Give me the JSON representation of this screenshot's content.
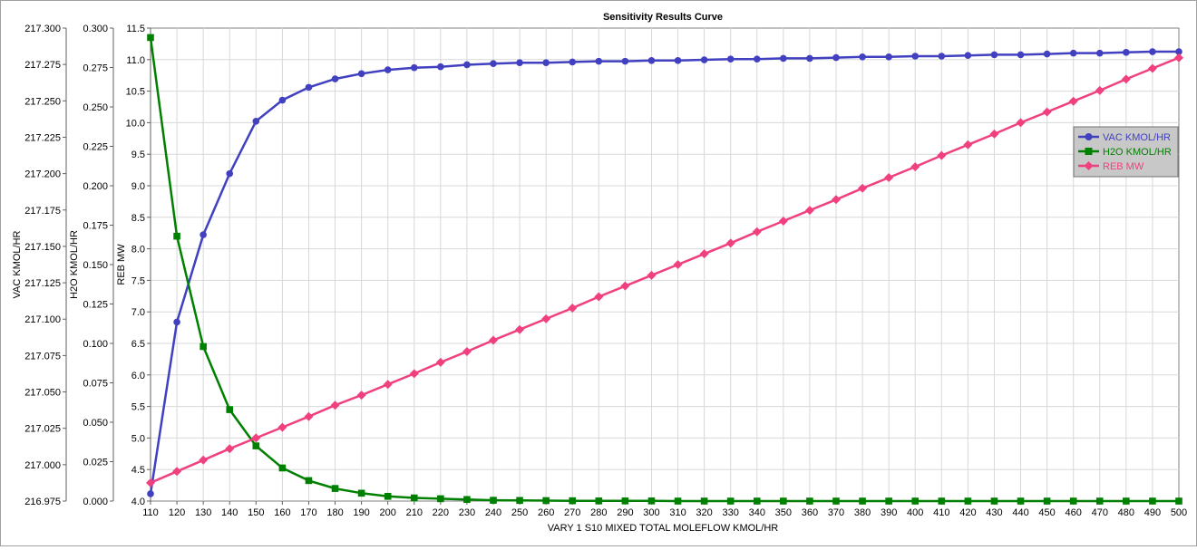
{
  "chart_data": {
    "type": "line",
    "title": "Sensitivity Results Curve",
    "xlabel": "VARY   1 S10 MIXED TOTAL MOLEFLOW KMOL/HR",
    "xlim": [
      110,
      500
    ],
    "x": [
      110,
      120,
      130,
      140,
      150,
      160,
      170,
      180,
      190,
      200,
      210,
      220,
      230,
      240,
      250,
      260,
      270,
      280,
      290,
      300,
      310,
      320,
      330,
      340,
      350,
      360,
      370,
      380,
      390,
      400,
      410,
      420,
      430,
      440,
      450,
      460,
      470,
      480,
      490,
      500
    ],
    "grid": true,
    "legend_position": "right",
    "axes": [
      {
        "label": "VAC KMOL/HR",
        "ylim": [
          216.975,
          217.3
        ],
        "ticks": [
          "216.975",
          "217.000",
          "217.025",
          "217.050",
          "217.075",
          "217.100",
          "217.125",
          "217.150",
          "217.175",
          "217.200",
          "217.225",
          "217.250",
          "217.275",
          "217.300"
        ]
      },
      {
        "label": "H2O KMOL/HR",
        "ylim": [
          0.0,
          0.3
        ],
        "ticks": [
          "0.000",
          "0.025",
          "0.050",
          "0.075",
          "0.100",
          "0.125",
          "0.150",
          "0.175",
          "0.200",
          "0.225",
          "0.250",
          "0.275",
          "0.300"
        ]
      },
      {
        "label": "REB MW",
        "ylim": [
          4.0,
          11.5
        ],
        "ticks": [
          "4.0",
          "4.5",
          "5.0",
          "5.5",
          "6.0",
          "6.5",
          "7.0",
          "7.5",
          "8.0",
          "8.5",
          "9.0",
          "9.5",
          "10.0",
          "10.5",
          "11.0",
          "11.5"
        ]
      }
    ],
    "series": [
      {
        "name": "VAC KMOL/HR",
        "axis": 0,
        "color": "#4040c0",
        "marker": "circle",
        "values": [
          216.98,
          217.098,
          217.158,
          217.2,
          217.236,
          217.2505,
          217.2593,
          217.2651,
          217.2687,
          217.2713,
          217.2728,
          217.2734,
          217.2748,
          217.2756,
          217.2762,
          217.2762,
          217.2767,
          217.2772,
          217.2772,
          217.2777,
          217.2777,
          217.2782,
          217.2787,
          217.2787,
          217.2792,
          217.2792,
          217.2797,
          217.2802,
          217.2802,
          217.2807,
          217.2807,
          217.2812,
          217.2817,
          217.2817,
          217.2822,
          217.2828,
          217.2828,
          217.2833,
          217.2838,
          217.2838
        ]
      },
      {
        "name": "H2O KMOL/HR",
        "axis": 1,
        "color": "#008000",
        "marker": "square",
        "values": [
          0.294,
          0.168,
          0.098,
          0.058,
          0.035,
          0.021,
          0.013,
          0.008,
          0.005,
          0.003,
          0.002,
          0.0015,
          0.001,
          0.0005,
          0.0004,
          0.0003,
          0.0002,
          0.0001,
          0.0001,
          0.0001,
          0.0,
          0.0,
          0.0,
          0.0,
          0.0,
          0.0,
          0.0,
          0.0,
          0.0,
          0.0,
          0.0,
          0.0,
          0.0,
          0.0,
          0.0,
          0.0,
          0.0,
          0.0,
          0.0,
          0.0
        ]
      },
      {
        "name": "REB MW",
        "axis": 2,
        "color": "#f04080",
        "marker": "diamond",
        "values": [
          4.29,
          4.47,
          4.65,
          4.83,
          5.0,
          5.17,
          5.34,
          5.52,
          5.68,
          5.85,
          6.02,
          6.2,
          6.37,
          6.55,
          6.72,
          6.89,
          7.06,
          7.24,
          7.41,
          7.58,
          7.75,
          7.92,
          8.09,
          8.27,
          8.44,
          8.61,
          8.78,
          8.96,
          9.13,
          9.3,
          9.48,
          9.65,
          9.82,
          10.0,
          10.17,
          10.34,
          10.51,
          10.69,
          10.86,
          11.03
        ]
      }
    ]
  }
}
